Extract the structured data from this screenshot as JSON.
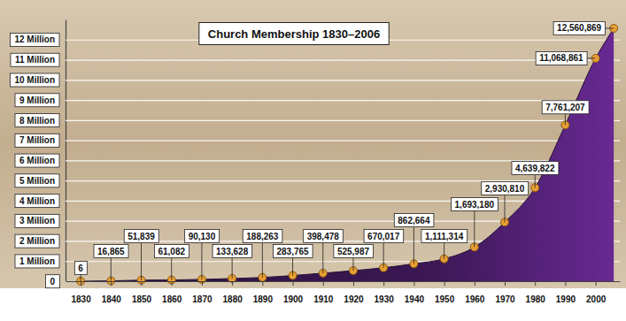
{
  "chart_data": {
    "type": "area",
    "title": "Church Membership 1830–2006",
    "x": [
      1830,
      1840,
      1850,
      1860,
      1870,
      1880,
      1890,
      1900,
      1910,
      1920,
      1930,
      1940,
      1950,
      1960,
      1970,
      1980,
      1990,
      2000,
      2006
    ],
    "values": [
      6,
      16865,
      51839,
      61082,
      90130,
      133628,
      188263,
      283765,
      398478,
      525987,
      670017,
      862664,
      1111314,
      1693180,
      2930810,
      4639822,
      7761207,
      11068861,
      12560869
    ],
    "value_labels": [
      "6",
      "16,865",
      "51,839",
      "61,082",
      "90,130",
      "133,628",
      "188,263",
      "283,765",
      "398,478",
      "525,987",
      "670,017",
      "862,664",
      "1,111,314",
      "1,693,180",
      "2,930,810",
      "4,639,822",
      "7,761,207",
      "11,068,861",
      "12,560,869"
    ],
    "color": "#3b1753",
    "marker": "circle",
    "xlim": [
      1825,
      2008
    ],
    "xticks": [
      1830,
      1840,
      1850,
      1860,
      1870,
      1880,
      1890,
      1900,
      1910,
      1920,
      1930,
      1940,
      1950,
      1960,
      1970,
      1980,
      1990,
      2000
    ],
    "ylim": [
      0,
      13000000
    ],
    "yticks": [
      0,
      {
        "value": 1000000,
        "label": "1 Million"
      },
      {
        "value": 2000000,
        "label": "2 Million"
      },
      {
        "value": 3000000,
        "label": "3 Million"
      },
      {
        "value": 4000000,
        "label": "4 Million"
      },
      {
        "value": 5000000,
        "label": "5 Million"
      },
      {
        "value": 6000000,
        "label": "6 Million"
      },
      {
        "value": 7000000,
        "label": "7 Million"
      },
      {
        "value": 8000000,
        "label": "8 Million"
      },
      {
        "value": 9000000,
        "label": "9 Million"
      },
      {
        "value": 10000000,
        "label": "10 Million"
      },
      {
        "value": 11000000,
        "label": "11 Million"
      },
      {
        "value": 12000000,
        "label": "12 Million"
      }
    ],
    "grid": true,
    "data_labels": true
  }
}
